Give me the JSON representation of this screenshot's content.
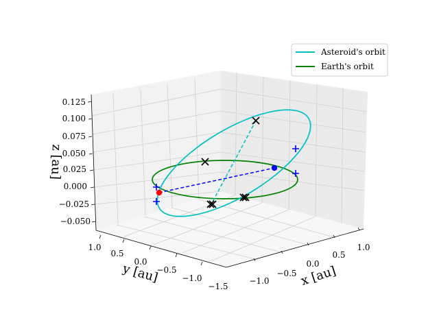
{
  "chart_data": {
    "type": "line3d",
    "xlabel": "x [au]",
    "ylabel": "y [au]",
    "zlabel": "z [au]",
    "x_ticks": [
      "−1.0",
      "−0.5",
      "0.0",
      "0.5",
      "1.0"
    ],
    "y_ticks": [
      "1.0",
      "0.5",
      "0.0",
      "−0.5",
      "−1.0",
      "−1.5"
    ],
    "z_ticks": [
      "0.125",
      "0.100",
      "0.075",
      "0.050",
      "0.025",
      "0.000",
      "−0.025",
      "−0.050"
    ],
    "xlim": [
      -1.3,
      1.3
    ],
    "ylim": [
      -1.6,
      1.2
    ],
    "zlim": [
      -0.055,
      0.13
    ],
    "grid": true,
    "legend_position": "top-right",
    "series": [
      {
        "name": "Asteroid's orbit",
        "color": "#00bfbf",
        "style": "solid"
      },
      {
        "name": "Earth's orbit",
        "color": "#008000",
        "style": "solid"
      }
    ],
    "markers": {
      "red_dot_color": "#ff0000",
      "blue_dot_color": "#0000ff",
      "blue_plus_color": "#0000ff",
      "black_x_color": "#000000"
    },
    "connectors": [
      {
        "color": "#0000ff",
        "style": "dashed"
      },
      {
        "color": "#00bfbf",
        "style": "dashed"
      }
    ]
  }
}
